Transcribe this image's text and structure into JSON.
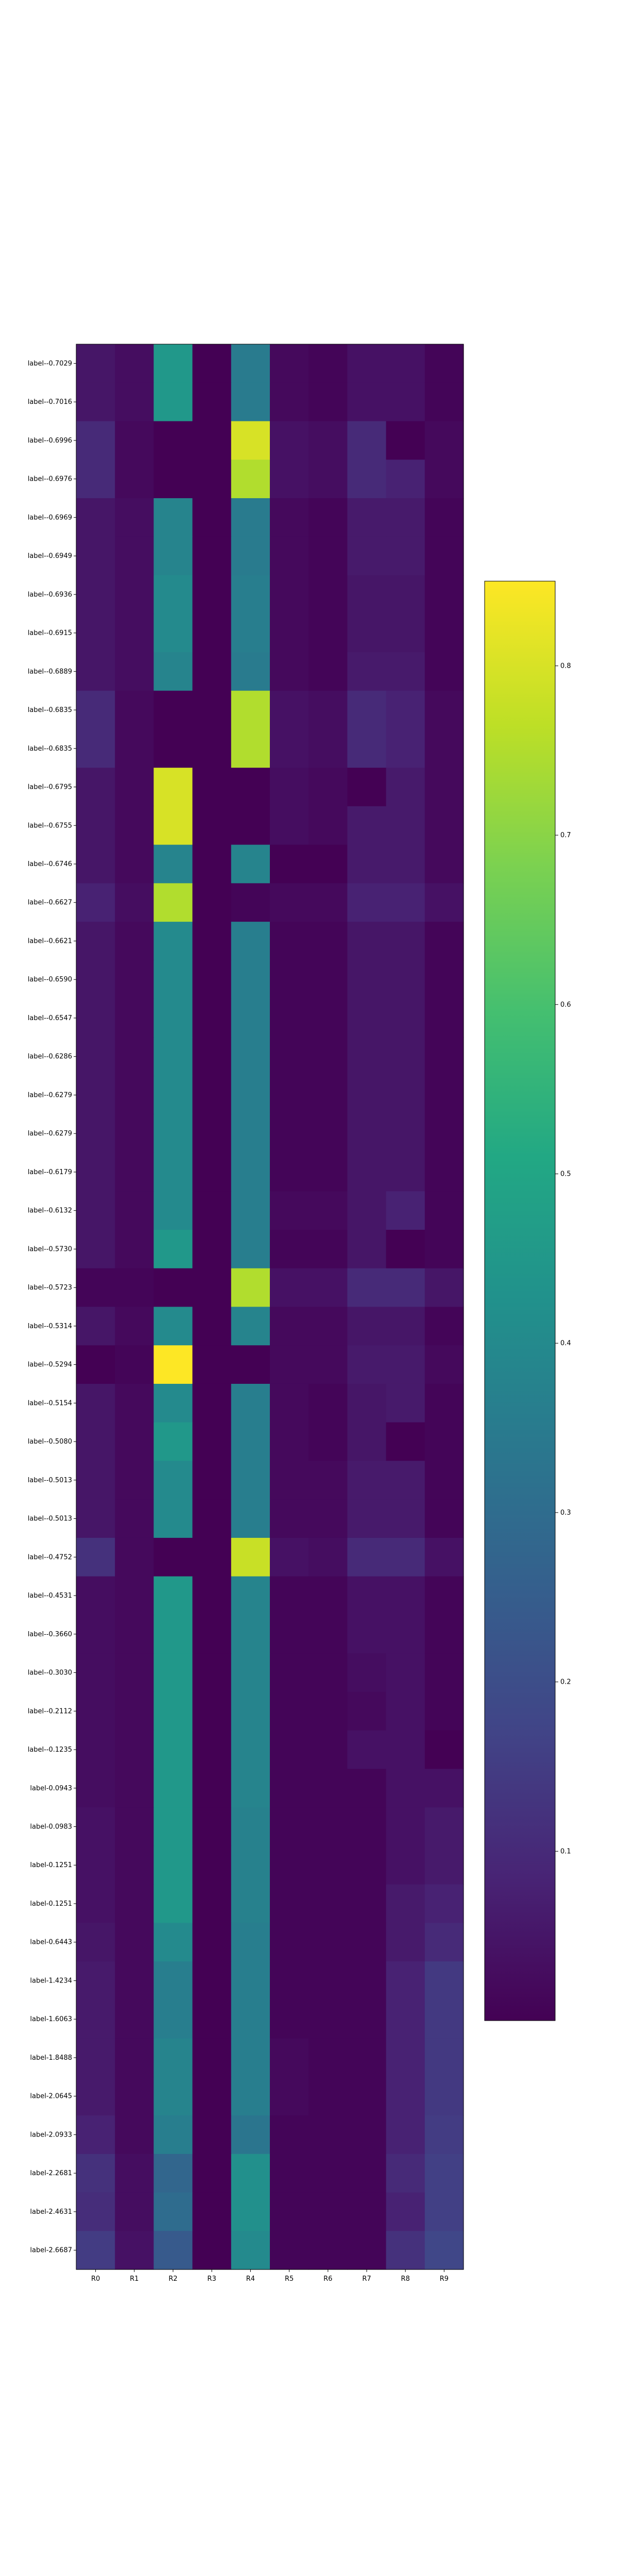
{
  "chart_data": {
    "type": "heatmap",
    "title": "",
    "xlabel": "",
    "ylabel": "",
    "columns": [
      "R0",
      "R1",
      "R2",
      "R3",
      "R4",
      "R5",
      "R6",
      "R7",
      "R8",
      "R9"
    ],
    "rows": [
      "label--0.7029",
      "label--0.7016",
      "label--0.6996",
      "label--0.6976",
      "label--0.6969",
      "label--0.6949",
      "label--0.6936",
      "label--0.6915",
      "label--0.6889",
      "label--0.6835",
      "label--0.6835",
      "label--0.6795",
      "label--0.6755",
      "label--0.6746",
      "label--0.6627",
      "label--0.6621",
      "label--0.6590",
      "label--0.6547",
      "label--0.6286",
      "label--0.6279",
      "label--0.6279",
      "label--0.6179",
      "label--0.6132",
      "label--0.5730",
      "label--0.5723",
      "label--0.5314",
      "label--0.5294",
      "label--0.5154",
      "label--0.5080",
      "label--0.5013",
      "label--0.5013",
      "label--0.4752",
      "label--0.4531",
      "label--0.3660",
      "label--0.3030",
      "label--0.2112",
      "label--0.1235",
      "label-0.0943",
      "label-0.0983",
      "label-0.1251",
      "label-0.1251",
      "label-0.6443",
      "label-1.4234",
      "label-1.6063",
      "label-1.8488",
      "label-2.0645",
      "label-2.0933",
      "label-2.2681",
      "label-2.4631",
      "label-2.6687"
    ],
    "values": [
      [
        0.05,
        0.03,
        0.45,
        0.0,
        0.35,
        0.02,
        0.01,
        0.04,
        0.04,
        0.01
      ],
      [
        0.05,
        0.03,
        0.45,
        0.0,
        0.35,
        0.02,
        0.01,
        0.04,
        0.04,
        0.01
      ],
      [
        0.1,
        0.02,
        0.0,
        0.0,
        0.8,
        0.04,
        0.03,
        0.1,
        0.0,
        0.02
      ],
      [
        0.1,
        0.02,
        0.0,
        0.0,
        0.75,
        0.04,
        0.03,
        0.1,
        0.08,
        0.02
      ],
      [
        0.05,
        0.03,
        0.38,
        0.0,
        0.35,
        0.02,
        0.01,
        0.06,
        0.06,
        0.01
      ],
      [
        0.05,
        0.03,
        0.38,
        0.0,
        0.35,
        0.02,
        0.01,
        0.06,
        0.06,
        0.01
      ],
      [
        0.05,
        0.03,
        0.4,
        0.0,
        0.36,
        0.02,
        0.01,
        0.05,
        0.05,
        0.01
      ],
      [
        0.05,
        0.03,
        0.4,
        0.0,
        0.36,
        0.02,
        0.01,
        0.05,
        0.05,
        0.01
      ],
      [
        0.05,
        0.03,
        0.38,
        0.0,
        0.35,
        0.02,
        0.01,
        0.06,
        0.06,
        0.01
      ],
      [
        0.1,
        0.02,
        0.0,
        0.0,
        0.75,
        0.04,
        0.03,
        0.1,
        0.08,
        0.02
      ],
      [
        0.1,
        0.02,
        0.0,
        0.0,
        0.75,
        0.04,
        0.03,
        0.1,
        0.08,
        0.02
      ],
      [
        0.05,
        0.02,
        0.8,
        0.0,
        0.0,
        0.03,
        0.02,
        0.0,
        0.06,
        0.02
      ],
      [
        0.05,
        0.02,
        0.8,
        0.0,
        0.0,
        0.03,
        0.02,
        0.06,
        0.06,
        0.02
      ],
      [
        0.05,
        0.02,
        0.38,
        0.0,
        0.38,
        0.0,
        0.0,
        0.06,
        0.06,
        0.02
      ],
      [
        0.08,
        0.03,
        0.75,
        0.0,
        0.01,
        0.02,
        0.02,
        0.08,
        0.08,
        0.04
      ],
      [
        0.05,
        0.02,
        0.4,
        0.0,
        0.36,
        0.01,
        0.01,
        0.05,
        0.05,
        0.01
      ],
      [
        0.05,
        0.02,
        0.4,
        0.0,
        0.36,
        0.01,
        0.01,
        0.05,
        0.05,
        0.01
      ],
      [
        0.05,
        0.02,
        0.4,
        0.0,
        0.36,
        0.01,
        0.01,
        0.05,
        0.05,
        0.01
      ],
      [
        0.05,
        0.02,
        0.4,
        0.0,
        0.36,
        0.01,
        0.01,
        0.05,
        0.05,
        0.01
      ],
      [
        0.05,
        0.02,
        0.4,
        0.0,
        0.36,
        0.01,
        0.01,
        0.05,
        0.05,
        0.01
      ],
      [
        0.05,
        0.02,
        0.4,
        0.0,
        0.36,
        0.01,
        0.01,
        0.05,
        0.05,
        0.01
      ],
      [
        0.05,
        0.02,
        0.4,
        0.0,
        0.36,
        0.01,
        0.01,
        0.05,
        0.05,
        0.01
      ],
      [
        0.05,
        0.02,
        0.4,
        0.0,
        0.36,
        0.02,
        0.02,
        0.05,
        0.08,
        0.01
      ],
      [
        0.05,
        0.02,
        0.45,
        0.0,
        0.36,
        0.01,
        0.01,
        0.05,
        0.0,
        0.01
      ],
      [
        0.01,
        0.01,
        0.0,
        0.0,
        0.75,
        0.04,
        0.04,
        0.1,
        0.1,
        0.05
      ],
      [
        0.05,
        0.02,
        0.4,
        0.0,
        0.38,
        0.02,
        0.02,
        0.05,
        0.05,
        0.01
      ],
      [
        0.0,
        0.01,
        0.85,
        0.0,
        0.0,
        0.02,
        0.02,
        0.06,
        0.06,
        0.02
      ],
      [
        0.05,
        0.02,
        0.4,
        0.0,
        0.36,
        0.02,
        0.01,
        0.05,
        0.06,
        0.01
      ],
      [
        0.05,
        0.02,
        0.45,
        0.0,
        0.36,
        0.02,
        0.01,
        0.05,
        0.0,
        0.01
      ],
      [
        0.05,
        0.02,
        0.4,
        0.0,
        0.36,
        0.02,
        0.02,
        0.06,
        0.06,
        0.01
      ],
      [
        0.05,
        0.02,
        0.4,
        0.0,
        0.36,
        0.02,
        0.02,
        0.06,
        0.06,
        0.01
      ],
      [
        0.12,
        0.02,
        0.0,
        0.0,
        0.78,
        0.04,
        0.03,
        0.1,
        0.1,
        0.04
      ],
      [
        0.03,
        0.02,
        0.45,
        0.0,
        0.38,
        0.01,
        0.01,
        0.04,
        0.04,
        0.01
      ],
      [
        0.03,
        0.02,
        0.45,
        0.0,
        0.38,
        0.01,
        0.01,
        0.04,
        0.04,
        0.01
      ],
      [
        0.03,
        0.02,
        0.45,
        0.0,
        0.38,
        0.01,
        0.01,
        0.03,
        0.04,
        0.01
      ],
      [
        0.03,
        0.02,
        0.45,
        0.0,
        0.38,
        0.01,
        0.01,
        0.02,
        0.04,
        0.01
      ],
      [
        0.03,
        0.02,
        0.45,
        0.0,
        0.38,
        0.01,
        0.01,
        0.04,
        0.04,
        0.0
      ],
      [
        0.03,
        0.02,
        0.45,
        0.0,
        0.38,
        0.01,
        0.01,
        0.01,
        0.04,
        0.04
      ],
      [
        0.04,
        0.02,
        0.45,
        0.0,
        0.37,
        0.01,
        0.01,
        0.01,
        0.04,
        0.06
      ],
      [
        0.04,
        0.02,
        0.45,
        0.0,
        0.37,
        0.01,
        0.01,
        0.01,
        0.04,
        0.06
      ],
      [
        0.04,
        0.02,
        0.45,
        0.0,
        0.37,
        0.01,
        0.01,
        0.01,
        0.06,
        0.08
      ],
      [
        0.05,
        0.02,
        0.4,
        0.0,
        0.36,
        0.01,
        0.01,
        0.01,
        0.06,
        0.1
      ],
      [
        0.06,
        0.02,
        0.36,
        0.0,
        0.36,
        0.01,
        0.01,
        0.01,
        0.08,
        0.14
      ],
      [
        0.06,
        0.02,
        0.36,
        0.0,
        0.36,
        0.01,
        0.01,
        0.01,
        0.08,
        0.14
      ],
      [
        0.06,
        0.02,
        0.38,
        0.0,
        0.36,
        0.02,
        0.01,
        0.01,
        0.08,
        0.14
      ],
      [
        0.06,
        0.02,
        0.38,
        0.0,
        0.36,
        0.02,
        0.01,
        0.01,
        0.08,
        0.14
      ],
      [
        0.08,
        0.02,
        0.36,
        0.0,
        0.33,
        0.01,
        0.01,
        0.01,
        0.08,
        0.15
      ],
      [
        0.12,
        0.03,
        0.28,
        0.0,
        0.42,
        0.01,
        0.01,
        0.01,
        0.1,
        0.16
      ],
      [
        0.11,
        0.03,
        0.3,
        0.0,
        0.42,
        0.01,
        0.01,
        0.01,
        0.08,
        0.16
      ],
      [
        0.15,
        0.04,
        0.24,
        0.0,
        0.4,
        0.01,
        0.01,
        0.01,
        0.12,
        0.18
      ]
    ],
    "colorbar": {
      "colormap": "viridis",
      "range": [
        0.0,
        0.85
      ],
      "ticks": [
        0.1,
        0.2,
        0.3,
        0.4,
        0.5,
        0.6,
        0.7,
        0.8
      ],
      "tick_labels": [
        "0.1",
        "0.2",
        "0.3",
        "0.4",
        "0.5",
        "0.6",
        "0.7",
        "0.8"
      ]
    }
  }
}
